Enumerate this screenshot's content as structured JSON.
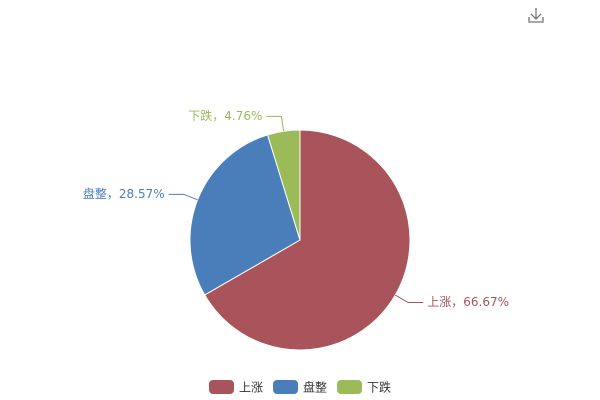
{
  "chart_data": {
    "type": "pie",
    "categories": [
      "上涨",
      "盘整",
      "下跌"
    ],
    "values": [
      66.67,
      28.57,
      4.76
    ],
    "value_labels": [
      "上涨，66.67%",
      "盘整，28.57%",
      "下跌，4.76%"
    ],
    "colors": [
      "#a9545a",
      "#4a7ebb",
      "#9bbb59"
    ]
  }
}
